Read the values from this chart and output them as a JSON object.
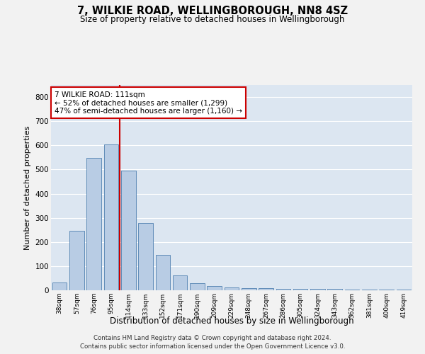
{
  "title": "7, WILKIE ROAD, WELLINGBOROUGH, NN8 4SZ",
  "subtitle": "Size of property relative to detached houses in Wellingborough",
  "xlabel": "Distribution of detached houses by size in Wellingborough",
  "ylabel": "Number of detached properties",
  "categories": [
    "38sqm",
    "57sqm",
    "76sqm",
    "95sqm",
    "114sqm",
    "133sqm",
    "152sqm",
    "171sqm",
    "190sqm",
    "209sqm",
    "229sqm",
    "248sqm",
    "267sqm",
    "286sqm",
    "305sqm",
    "324sqm",
    "343sqm",
    "362sqm",
    "381sqm",
    "400sqm",
    "419sqm"
  ],
  "values": [
    32,
    247,
    548,
    605,
    494,
    278,
    147,
    62,
    30,
    17,
    13,
    10,
    8,
    5,
    5,
    5,
    5,
    3,
    2,
    2,
    2
  ],
  "bar_color": "#b8cce4",
  "bar_edge_color": "#5080b0",
  "bg_color": "#dce6f1",
  "grid_color": "#ffffff",
  "fig_bg_color": "#f2f2f2",
  "red_line_index": 4,
  "red_line_color": "#cc0000",
  "annotation_text": "7 WILKIE ROAD: 111sqm\n← 52% of detached houses are smaller (1,299)\n47% of semi-detached houses are larger (1,160) →",
  "annotation_box_color": "#ffffff",
  "annotation_box_edge": "#cc0000",
  "footer_line1": "Contains HM Land Registry data © Crown copyright and database right 2024.",
  "footer_line2": "Contains public sector information licensed under the Open Government Licence v3.0.",
  "ylim": [
    0,
    850
  ],
  "yticks": [
    0,
    100,
    200,
    300,
    400,
    500,
    600,
    700,
    800
  ]
}
